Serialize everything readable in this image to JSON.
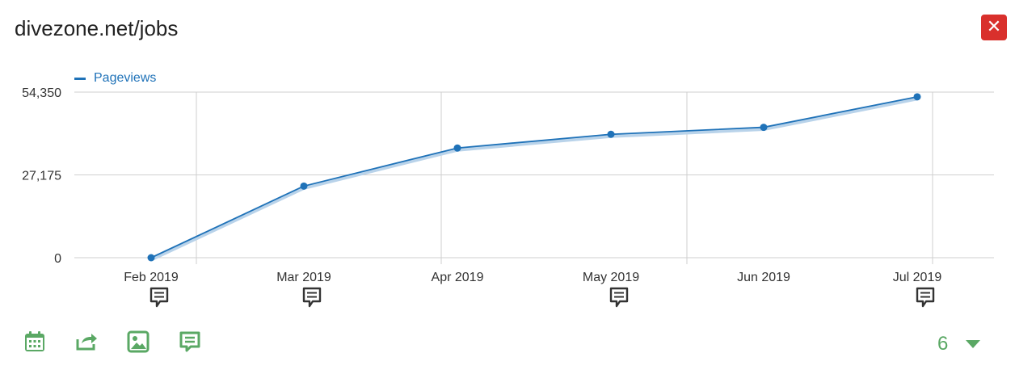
{
  "window": {
    "title": "divezone.net/jobs",
    "close_label": "✕"
  },
  "legend": {
    "label": "Pageviews"
  },
  "colors": {
    "series": "#1f72b8",
    "grid": "#cfcfcf",
    "close": "#d9302c",
    "toolbar": "#5aa864"
  },
  "chart_data": {
    "type": "line",
    "x": [
      "Feb 2019",
      "Mar 2019",
      "Apr 2019",
      "May 2019",
      "Jun 2019",
      "Jul 2019"
    ],
    "series": [
      {
        "name": "Pageviews",
        "values": [
          0,
          23500,
          36000,
          40500,
          42800,
          52800
        ]
      }
    ],
    "yticks": [
      "0",
      "27,175",
      "54,350"
    ],
    "ytick_values": [
      0,
      27175,
      54350
    ],
    "ylim": [
      0,
      54350
    ],
    "annotations": [
      "Feb 2019",
      "Mar 2019",
      "May 2019",
      "Jul 2019"
    ],
    "grid": true,
    "legend_position": "top-left"
  },
  "toolbar": {
    "icons": [
      "calendar-icon",
      "share-icon",
      "image-icon",
      "annotation-icon"
    ]
  },
  "pager": {
    "value": "6"
  }
}
